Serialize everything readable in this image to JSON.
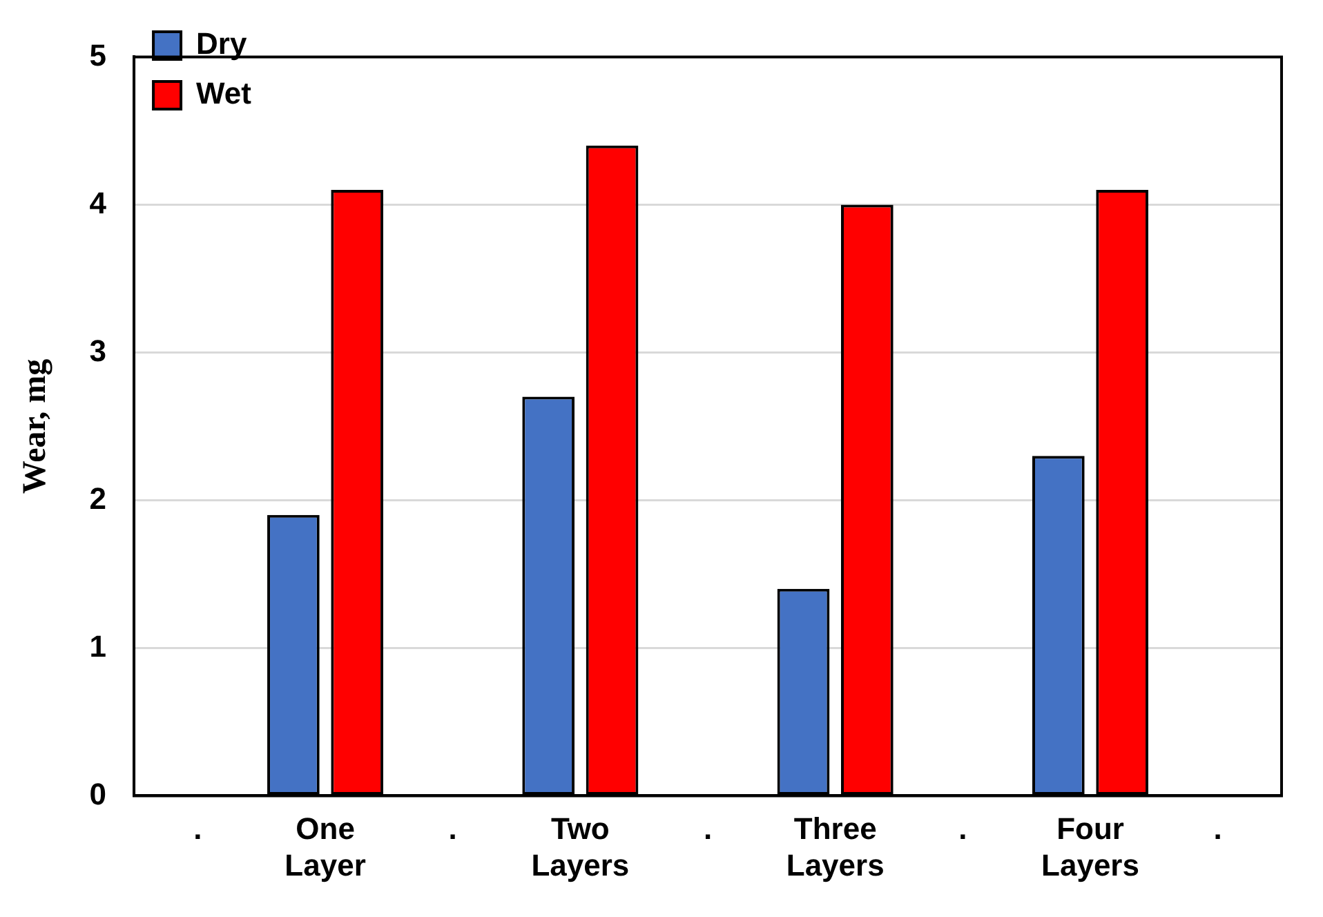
{
  "chart_data": {
    "type": "bar",
    "ylabel": "Wear, mg",
    "categories": [
      ".",
      "One Layer",
      ".",
      "Two Layers",
      ".",
      "Three Layers",
      ".",
      "Four Layers",
      "."
    ],
    "series": [
      {
        "name": "Dry",
        "color": "#4472c4",
        "values": [
          null,
          1.9,
          null,
          2.7,
          null,
          1.4,
          null,
          2.3,
          null
        ]
      },
      {
        "name": "Wet",
        "color": "#ff0000",
        "values": [
          null,
          4.1,
          null,
          4.4,
          null,
          4.0,
          null,
          4.1,
          null
        ]
      }
    ],
    "ylim": [
      0,
      5
    ],
    "yticks": [
      0,
      1,
      2,
      3,
      4,
      5
    ],
    "grid": "y",
    "legend": "top left"
  }
}
